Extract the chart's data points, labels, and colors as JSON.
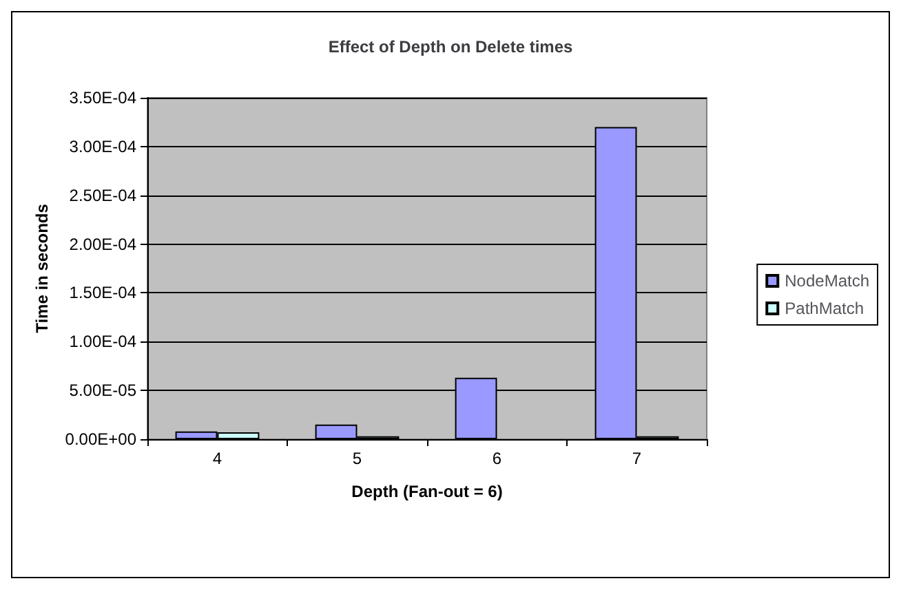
{
  "chart_data": {
    "type": "bar",
    "title": "Effect of Depth on Delete times",
    "xlabel": "Depth (Fan-out = 6)",
    "ylabel": "Time in seconds",
    "categories": [
      "4",
      "5",
      "6",
      "7"
    ],
    "series": [
      {
        "name": "NodeMatch",
        "color": "#9999ff",
        "values": [
          8e-06,
          1.5e-05,
          6.3e-05,
          0.00032
        ]
      },
      {
        "name": "PathMatch",
        "color": "#ccffff",
        "values": [
          7e-06,
          3e-06,
          null,
          3e-06
        ]
      }
    ],
    "ylim": [
      0,
      0.00035
    ],
    "yticks": [
      {
        "value": 0,
        "label": "0.00E+00"
      },
      {
        "value": 5e-05,
        "label": "5.00E-05"
      },
      {
        "value": 0.0001,
        "label": "1.00E-04"
      },
      {
        "value": 0.00015,
        "label": "1.50E-04"
      },
      {
        "value": 0.0002,
        "label": "2.00E-04"
      },
      {
        "value": 0.00025,
        "label": "2.50E-04"
      },
      {
        "value": 0.0003,
        "label": "3.00E-04"
      },
      {
        "value": 0.00035,
        "label": "3.50E-04"
      }
    ],
    "grid": "y",
    "legend": "right"
  }
}
